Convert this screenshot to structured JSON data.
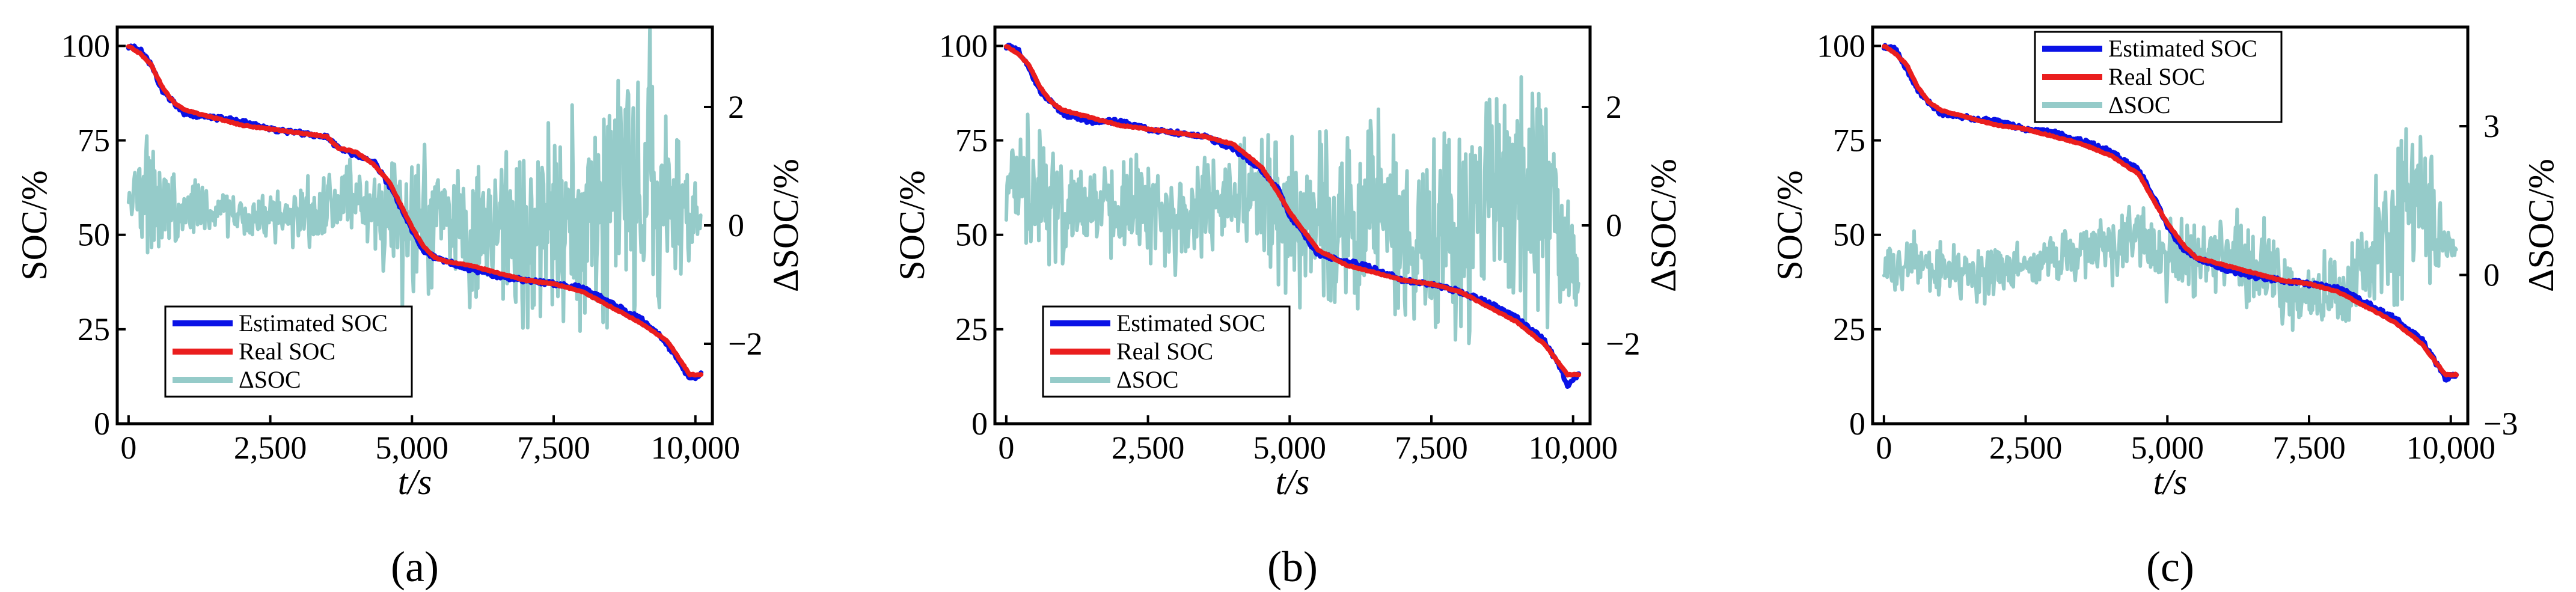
{
  "figure": {
    "captions": [
      "(a)",
      "(b)",
      "(c)"
    ]
  },
  "series_colors": {
    "estimated": "#0a12e6",
    "real": "#ea1e1e",
    "delta": "#95cbc9"
  },
  "chart_data": [
    {
      "type": "line",
      "caption": "(a)",
      "xlabel": "t/s",
      "ylabel": "SOC/%",
      "y2label": "ΔSOC/%",
      "xlim": [
        -200,
        10300
      ],
      "ylim": [
        0,
        105
      ],
      "y2lim": [
        -3.35,
        3.35
      ],
      "xticks": [
        0,
        2500,
        5000,
        7500,
        10000
      ],
      "xtick_labels": [
        "0",
        "2,500",
        "5,000",
        "7,500",
        "10,000"
      ],
      "yticks": [
        0,
        25,
        50,
        75,
        100
      ],
      "ytick_labels": [
        "0",
        "25",
        "50",
        "75",
        "100"
      ],
      "y2ticks": [
        -2,
        0,
        2
      ],
      "y2tick_labels": [
        "−2",
        "0",
        "2"
      ],
      "legend": {
        "placement": "bottom-left",
        "entries": [
          "Estimated SOC",
          "Real SOC",
          "ΔSOC"
        ]
      },
      "series": [
        {
          "name": "Real SOC",
          "axis": "left",
          "x": [
            0,
            200,
            400,
            600,
            800,
            1000,
            1500,
            2000,
            2500,
            3000,
            3500,
            3700,
            4000,
            4300,
            4600,
            4800,
            5000,
            5200,
            5400,
            5600,
            6000,
            6500,
            7000,
            7500,
            8000,
            8500,
            9000,
            9500,
            9900,
            10100
          ],
          "values": [
            100,
            98,
            95,
            89,
            85,
            83,
            81,
            79,
            78,
            77,
            76,
            73,
            72,
            69,
            64,
            58,
            52,
            47,
            44,
            43,
            42,
            40,
            38,
            37,
            35,
            31,
            27,
            22,
            13,
            13
          ]
        },
        {
          "name": "Estimated SOC",
          "axis": "left",
          "x": [
            0,
            200,
            400,
            600,
            800,
            1000,
            1500,
            2000,
            2500,
            3000,
            3500,
            3700,
            4000,
            4300,
            4600,
            4800,
            5000,
            5200,
            5400,
            5600,
            6000,
            6500,
            7000,
            7500,
            8000,
            8500,
            9000,
            9200,
            9500,
            9900,
            10100
          ],
          "values": [
            100,
            99,
            95,
            88,
            85,
            82,
            81,
            80,
            78,
            77,
            76,
            73,
            71,
            70,
            63,
            57,
            51,
            46,
            44,
            43,
            41,
            39,
            38,
            37,
            36,
            32,
            28,
            26,
            21,
            12,
            13
          ]
        },
        {
          "name": "ΔSOC",
          "axis": "right",
          "noisy": true,
          "x": [
            0,
            300,
            600,
            1000,
            1500,
            2000,
            2500,
            3000,
            3500,
            4000,
            4500,
            5000,
            5500,
            6000,
            6500,
            7000,
            7500,
            8000,
            8500,
            9000,
            9500,
            9800,
            10100
          ],
          "values": [
            0.5,
            0.6,
            0.4,
            0.3,
            0.2,
            0.1,
            0.2,
            0.1,
            0.3,
            0.5,
            0.2,
            0.0,
            0.3,
            -0.1,
            0.2,
            -0.3,
            0.0,
            0.0,
            0.5,
            0.6,
            0.5,
            0.3,
            0.0
          ],
          "noise_amplitude": [
            0.35,
            0.9,
            0.6,
            0.4,
            0.3,
            0.3,
            0.3,
            0.4,
            0.4,
            0.5,
            0.7,
            1.0,
            0.8,
            0.9,
            1.0,
            1.1,
            1.2,
            1.4,
            1.6,
            1.8,
            1.5,
            0.8,
            0.2
          ]
        }
      ]
    },
    {
      "type": "line",
      "caption": "(b)",
      "xlabel": "t/s",
      "ylabel": "SOC/%",
      "y2label": "ΔSOC/%",
      "xlim": [
        -200,
        10300
      ],
      "ylim": [
        0,
        105
      ],
      "y2lim": [
        -3.35,
        3.35
      ],
      "xticks": [
        0,
        2500,
        5000,
        7500,
        10000
      ],
      "xtick_labels": [
        "0",
        "2,500",
        "5,000",
        "7,500",
        "10,000"
      ],
      "yticks": [
        0,
        25,
        50,
        75,
        100
      ],
      "ytick_labels": [
        "0",
        "25",
        "50",
        "75",
        "100"
      ],
      "y2ticks": [
        -2,
        0,
        2
      ],
      "y2tick_labels": [
        "−2",
        "0",
        "2"
      ],
      "legend": {
        "placement": "bottom-left",
        "entries": [
          "Estimated SOC",
          "Real SOC",
          "ΔSOC"
        ]
      },
      "series": [
        {
          "name": "Real SOC",
          "axis": "left",
          "x": [
            0,
            200,
            400,
            600,
            800,
            1000,
            1500,
            2000,
            2500,
            3000,
            3500,
            4000,
            4500,
            4800,
            5000,
            5300,
            5500,
            6000,
            6500,
            7000,
            7500,
            8000,
            8500,
            9000,
            9500,
            9900,
            10100
          ],
          "values": [
            100,
            98,
            95,
            89,
            85,
            83,
            81,
            79,
            78,
            77,
            76,
            74,
            68,
            61,
            56,
            50,
            46,
            42,
            40,
            38,
            37,
            35,
            31,
            27,
            21,
            13,
            13
          ]
        },
        {
          "name": "Estimated SOC",
          "axis": "left",
          "x": [
            0,
            200,
            400,
            600,
            800,
            1000,
            1500,
            2000,
            2500,
            3000,
            3500,
            4000,
            4500,
            4800,
            5000,
            5300,
            5500,
            6000,
            6500,
            7000,
            7500,
            8000,
            8500,
            9000,
            9500,
            9800,
            9900,
            10100
          ],
          "values": [
            100,
            99,
            94,
            88,
            85,
            82,
            80,
            80,
            78,
            77,
            76,
            73,
            67,
            62,
            55,
            49,
            45,
            43,
            41,
            38,
            37,
            35,
            32,
            28,
            22,
            14,
            10,
            13
          ]
        },
        {
          "name": "ΔSOC",
          "axis": "right",
          "noisy": true,
          "x": [
            0,
            300,
            600,
            1000,
            1500,
            2000,
            2500,
            3000,
            3500,
            4000,
            4500,
            5000,
            5500,
            6000,
            6500,
            7000,
            7500,
            8000,
            8500,
            9000,
            9500,
            9800,
            10100
          ],
          "values": [
            1.0,
            0.6,
            0.4,
            0.3,
            0.2,
            0.3,
            0.3,
            0.2,
            0.3,
            0.4,
            0.4,
            0.1,
            0.2,
            0.0,
            0.3,
            0.0,
            -0.6,
            -0.3,
            0.3,
            0.5,
            0.6,
            -0.5,
            -1.0
          ],
          "noise_amplitude": [
            0.7,
            0.9,
            0.8,
            0.7,
            0.6,
            0.7,
            0.6,
            0.7,
            0.7,
            0.7,
            0.8,
            1.0,
            1.1,
            1.2,
            1.3,
            1.2,
            1.3,
            1.4,
            1.6,
            1.8,
            1.6,
            1.0,
            0.5
          ]
        }
      ]
    },
    {
      "type": "line",
      "caption": "(c)",
      "xlabel": "t/s",
      "ylabel": "SOC/%",
      "y2label": "ΔSOC/%",
      "xlim": [
        -200,
        10300
      ],
      "ylim": [
        0,
        105
      ],
      "y2lim": [
        -3.0,
        5.0
      ],
      "xticks": [
        0,
        2500,
        5000,
        7500,
        10000
      ],
      "xtick_labels": [
        "0",
        "2,500",
        "5,000",
        "7,500",
        "10,000"
      ],
      "yticks": [
        0,
        25,
        50,
        75,
        100
      ],
      "ytick_labels": [
        "0",
        "25",
        "50",
        "75",
        "100"
      ],
      "y2ticks": [
        -3,
        0,
        3
      ],
      "y2tick_labels": [
        "−3",
        "0",
        "3"
      ],
      "legend": {
        "placement": "top-center",
        "entries": [
          "Estimated SOC",
          "Real SOC",
          "ΔSOC"
        ]
      },
      "series": [
        {
          "name": "Real SOC",
          "axis": "left",
          "x": [
            0,
            200,
            400,
            600,
            800,
            1000,
            1500,
            2000,
            2500,
            3000,
            3500,
            4000,
            4500,
            4800,
            5000,
            5300,
            5500,
            6000,
            6500,
            7000,
            7500,
            8000,
            8500,
            9000,
            9500,
            9900,
            10100
          ],
          "values": [
            100,
            98,
            95,
            89,
            85,
            83,
            81,
            79,
            78,
            76,
            74,
            71,
            66,
            58,
            53,
            47,
            44,
            42,
            40,
            38,
            37,
            35,
            31,
            27,
            21,
            13,
            13
          ]
        },
        {
          "name": "Estimated SOC",
          "axis": "left",
          "x": [
            0,
            200,
            400,
            600,
            800,
            1000,
            1500,
            2000,
            2500,
            3000,
            3500,
            4000,
            4500,
            4800,
            5000,
            5300,
            5500,
            6000,
            6500,
            7000,
            7500,
            8000,
            8500,
            9000,
            9500,
            9900,
            10100
          ],
          "values": [
            100,
            99,
            94,
            88,
            85,
            82,
            81,
            80,
            78,
            77,
            75,
            72,
            67,
            59,
            52,
            46,
            44,
            41,
            39,
            38,
            37,
            36,
            32,
            28,
            22,
            12,
            13
          ]
        },
        {
          "name": "ΔSOC",
          "axis": "right",
          "noisy": true,
          "x": [
            0,
            300,
            600,
            1000,
            1500,
            2000,
            2500,
            3000,
            3500,
            4000,
            4500,
            5000,
            5500,
            6000,
            6500,
            7000,
            7500,
            8000,
            8500,
            9000,
            9300,
            9600,
            9800,
            10000,
            10100
          ],
          "values": [
            0.4,
            0.2,
            0.3,
            0.1,
            0.0,
            0.1,
            0.2,
            0.3,
            0.4,
            0.6,
            0.8,
            0.3,
            0.4,
            0.3,
            0.4,
            -0.1,
            -0.4,
            -0.2,
            0.3,
            1.0,
            1.6,
            1.3,
            1.0,
            0.5,
            0.6
          ],
          "noise_amplitude": [
            0.4,
            0.4,
            0.4,
            0.4,
            0.4,
            0.4,
            0.4,
            0.4,
            0.4,
            0.5,
            0.5,
            0.6,
            0.6,
            0.6,
            0.7,
            0.6,
            0.6,
            0.7,
            0.9,
            1.2,
            1.4,
            1.2,
            0.8,
            0.3,
            0.1
          ]
        }
      ]
    }
  ]
}
